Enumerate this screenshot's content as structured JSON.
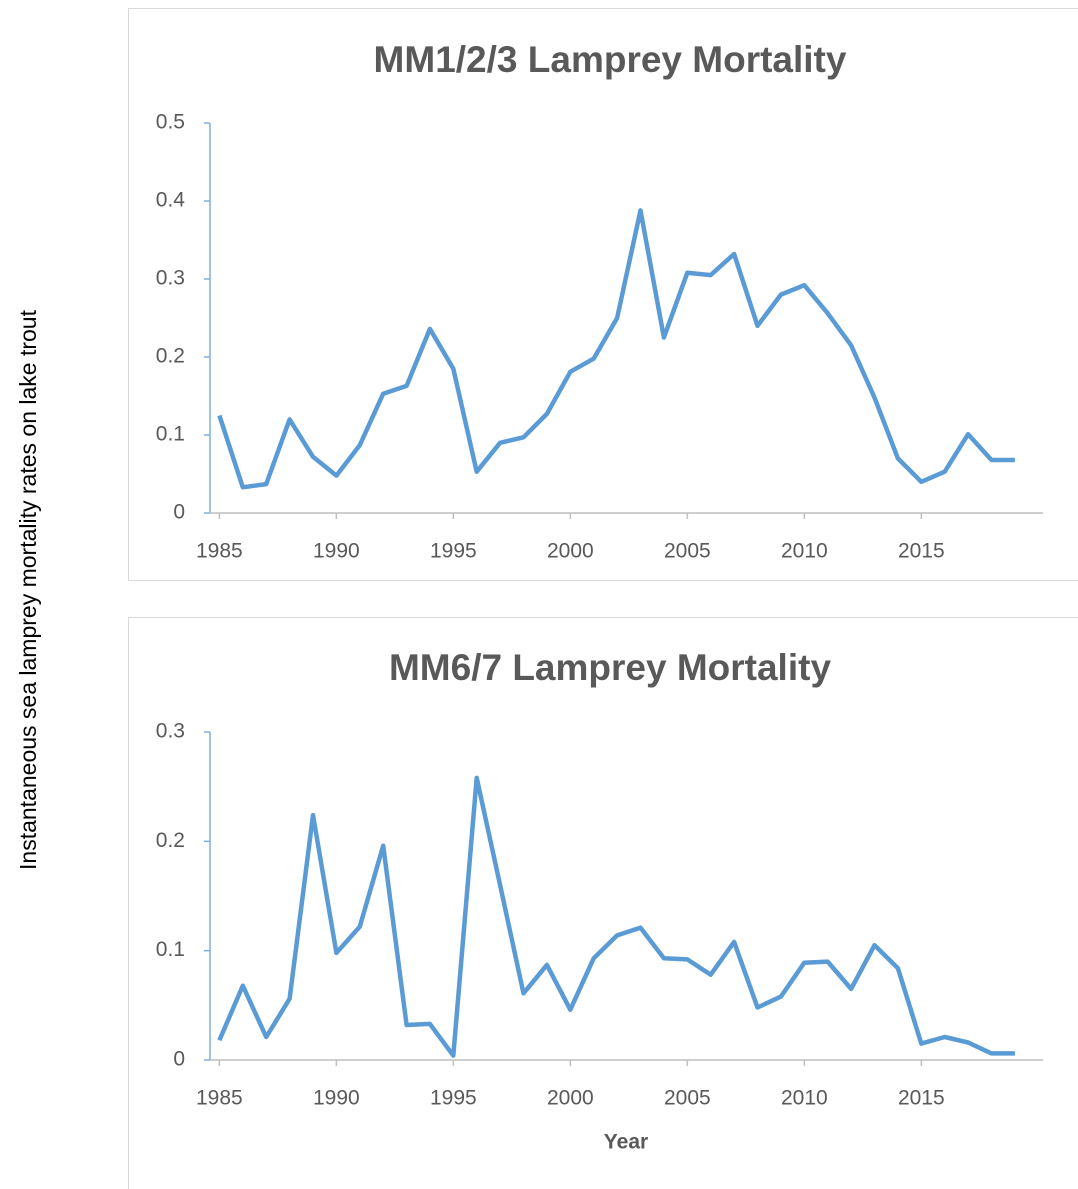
{
  "ylabel": "Instantaneous sea lamprey mortality rates on lake trout",
  "chart_data": [
    {
      "type": "line",
      "title": "MM1/2/3 Lamprey Mortality",
      "x": [
        1985,
        1986,
        1987,
        1988,
        1989,
        1990,
        1991,
        1992,
        1993,
        1994,
        1995,
        1996,
        1997,
        1998,
        1999,
        2000,
        2001,
        2002,
        2003,
        2004,
        2005,
        2006,
        2007,
        2008,
        2009,
        2010,
        2011,
        2012,
        2013,
        2014,
        2015,
        2016,
        2017,
        2018,
        2019
      ],
      "series": [
        {
          "color": "#5b9bd5",
          "values": [
            0.125,
            0.033,
            0.037,
            0.12,
            0.072,
            0.048,
            0.087,
            0.153,
            0.163,
            0.236,
            0.185,
            0.053,
            0.09,
            0.097,
            0.127,
            0.181,
            0.198,
            0.25,
            0.388,
            0.225,
            0.308,
            0.305,
            0.332,
            0.24,
            0.28,
            0.292,
            0.256,
            0.215,
            0.148,
            0.07,
            0.04,
            0.053,
            0.101,
            0.068,
            0.068
          ]
        }
      ],
      "xlim": [
        1984.6,
        2020.2
      ],
      "xticks": [
        1985,
        1990,
        1995,
        2000,
        2005,
        2010,
        2015
      ],
      "ylim": [
        0,
        0.5
      ],
      "yticks": [
        0,
        0.1,
        0.2,
        0.3,
        0.4,
        0.5
      ]
    },
    {
      "type": "line",
      "title": "MM6/7 Lamprey Mortality",
      "xlabel": "Year",
      "x": [
        1985,
        1986,
        1987,
        1988,
        1989,
        1990,
        1991,
        1992,
        1993,
        1994,
        1995,
        1996,
        1997,
        1998,
        1999,
        2000,
        2001,
        2002,
        2003,
        2004,
        2005,
        2006,
        2007,
        2008,
        2009,
        2010,
        2011,
        2012,
        2013,
        2014,
        2015,
        2016,
        2017,
        2018,
        2019
      ],
      "series": [
        {
          "color": "#5b9bd5",
          "values": [
            0.018,
            0.068,
            0.021,
            0.056,
            0.224,
            0.098,
            0.122,
            0.196,
            0.032,
            0.033,
            0.004,
            0.258,
            0.16,
            0.061,
            0.087,
            0.046,
            0.093,
            0.114,
            0.121,
            0.093,
            0.092,
            0.078,
            0.108,
            0.048,
            0.058,
            0.089,
            0.09,
            0.065,
            0.105,
            0.084,
            0.015,
            0.021,
            0.016,
            0.006,
            0.006
          ]
        }
      ],
      "xlim": [
        1984.6,
        2020.2
      ],
      "xticks": [
        1985,
        1990,
        1995,
        2000,
        2005,
        2010,
        2015
      ],
      "ylim": [
        0,
        0.3
      ],
      "yticks": [
        0,
        0.1,
        0.2,
        0.3
      ]
    }
  ]
}
